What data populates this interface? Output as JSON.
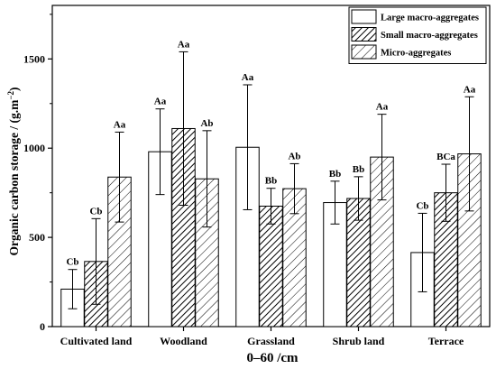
{
  "chart_data": {
    "type": "bar",
    "xlabel": "0–60 /cm",
    "ylabel": "Organic carbon storage / (g.m",
    "ylabel_superscript": "−2",
    "ylabel_suffix": ")",
    "ylim": [
      0,
      1800
    ],
    "yticks": [
      0,
      500,
      1000,
      1500
    ],
    "legend_position": "top-right",
    "categories": [
      "Cultivated land",
      "Woodland",
      "Grassland",
      "Shrub land",
      "Terrace"
    ],
    "series": [
      {
        "name": "Large macro-aggregates",
        "pattern": "solid-white",
        "values": [
          210,
          980,
          1005,
          695,
          415
        ],
        "errors": [
          110,
          240,
          350,
          120,
          220
        ],
        "labels": [
          "Cb",
          "Aa",
          "Aa",
          "Bb",
          "Cb"
        ]
      },
      {
        "name": "Small macro-aggregates",
        "pattern": "dense-hatch",
        "values": [
          365,
          1110,
          675,
          718,
          750
        ],
        "errors": [
          240,
          430,
          100,
          122,
          160
        ],
        "labels": [
          "Cb",
          "Aa",
          "Bb",
          "Bb",
          "BCa"
        ]
      },
      {
        "name": "Micro-aggregates",
        "pattern": "sparse-hatch",
        "values": [
          838,
          828,
          773,
          950,
          968
        ],
        "errors": [
          252,
          270,
          140,
          240,
          320
        ],
        "labels": [
          "Aa",
          "Ab",
          "Ab",
          "Aa",
          "Aa"
        ]
      }
    ]
  }
}
